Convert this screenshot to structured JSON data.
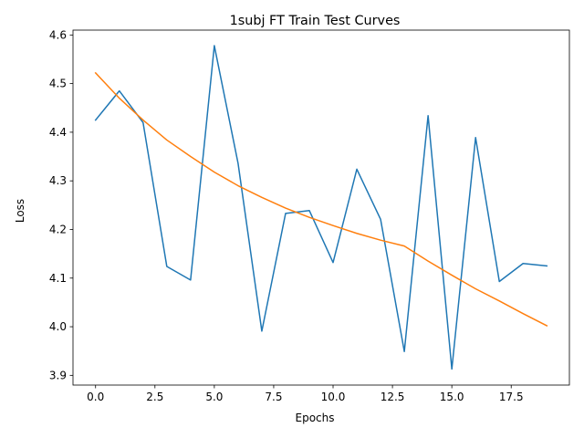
{
  "chart_data": {
    "type": "line",
    "title": "1subj FT Train Test Curves",
    "xlabel": "Epochs",
    "ylabel": "Loss",
    "xlim": [
      -0.95,
      19.95
    ],
    "ylim": [
      3.88,
      4.61
    ],
    "xticks": [
      0.0,
      2.5,
      5.0,
      7.5,
      10.0,
      12.5,
      15.0,
      17.5
    ],
    "xtick_labels": [
      "0.0",
      "2.5",
      "5.0",
      "7.5",
      "10.0",
      "12.5",
      "15.0",
      "17.5"
    ],
    "yticks": [
      3.9,
      4.0,
      4.1,
      4.2,
      4.3,
      4.4,
      4.5,
      4.6
    ],
    "ytick_labels": [
      "3.9",
      "4.0",
      "4.1",
      "4.2",
      "4.3",
      "4.4",
      "4.5",
      "4.6"
    ],
    "grid": false,
    "x": [
      0,
      1,
      2,
      3,
      4,
      5,
      6,
      7,
      8,
      9,
      10,
      11,
      12,
      13,
      14,
      15,
      16,
      17,
      18,
      19
    ],
    "series": [
      {
        "color": "#1f77b4",
        "values": [
          4.425,
          4.485,
          4.42,
          4.124,
          4.096,
          4.578,
          4.336,
          3.991,
          4.233,
          4.239,
          4.132,
          4.324,
          4.221,
          3.949,
          4.434,
          3.913,
          4.389,
          4.093,
          4.13,
          4.125
        ]
      },
      {
        "color": "#ff7f0e",
        "values": [
          4.522,
          4.47,
          4.425,
          4.384,
          4.35,
          4.318,
          4.29,
          4.266,
          4.244,
          4.225,
          4.208,
          4.192,
          4.178,
          4.166,
          4.135,
          4.106,
          4.078,
          4.053,
          4.027,
          4.002
        ]
      }
    ]
  }
}
